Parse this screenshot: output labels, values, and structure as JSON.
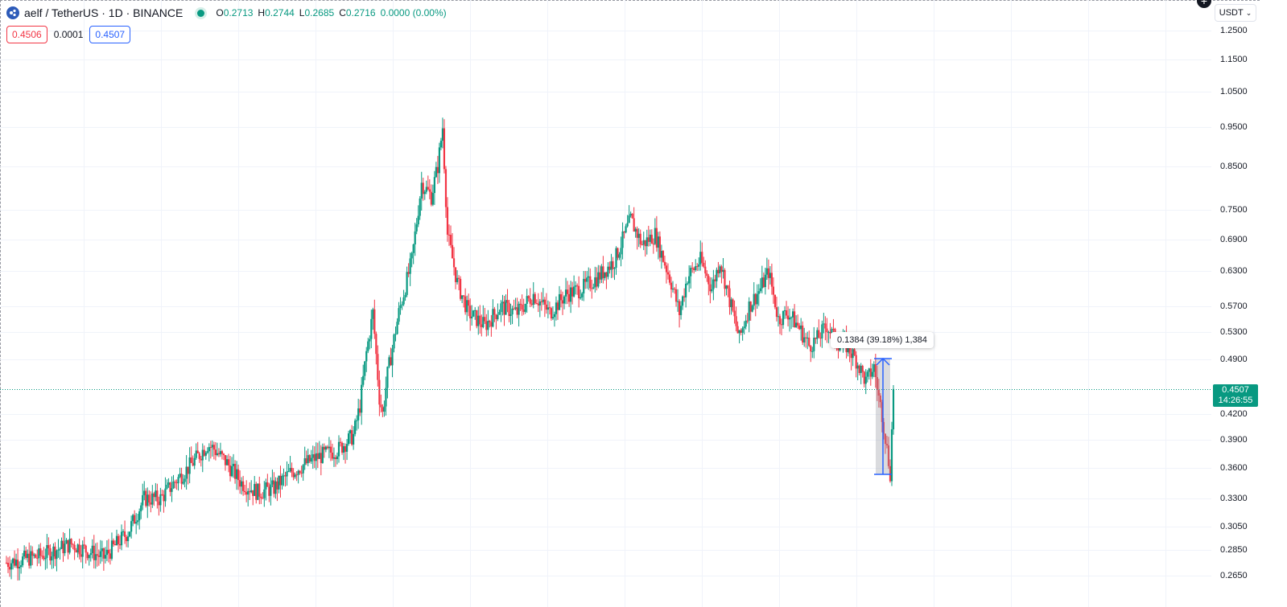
{
  "header": {
    "symbol": "aelf / TetherUS · 1D · BINANCE",
    "open_label": "O",
    "open": "0.2713",
    "high_label": "H",
    "high": "0.2744",
    "low_label": "L",
    "low": "0.2685",
    "close_label": "C",
    "close": "0.2716",
    "change": "0.0000 (0.00%)"
  },
  "trade": {
    "sell": "0.4506",
    "spread": "0.0001",
    "buy": "0.4507"
  },
  "currency": {
    "label": "USDT"
  },
  "price_axis": {
    "labels": [
      "1.2500",
      "1.1500",
      "1.0500",
      "0.9500",
      "0.8500",
      "0.7500",
      "0.6900",
      "0.6300",
      "0.5700",
      "0.5300",
      "0.4900",
      "0.4200",
      "0.3900",
      "0.3600",
      "0.3300",
      "0.3050",
      "0.2850",
      "0.2650"
    ],
    "last_price": "0.4507",
    "countdown": "14:26:55"
  },
  "measure": {
    "label": "0.1384 (39.18%) 1,384"
  },
  "colors": {
    "up": "#089981",
    "down": "#f23645",
    "measure": "#2962ff"
  },
  "chart_data": {
    "type": "candlestick",
    "scale": "log",
    "yticks": [
      1.25,
      1.15,
      1.05,
      0.95,
      0.85,
      0.75,
      0.69,
      0.63,
      0.57,
      0.53,
      0.49,
      0.42,
      0.39,
      0.36,
      0.33,
      0.305,
      0.285,
      0.265
    ],
    "waypoints": [
      [
        0,
        0.275
      ],
      [
        20,
        0.28
      ],
      [
        40,
        0.29
      ],
      [
        60,
        0.279
      ],
      [
        75,
        0.3
      ],
      [
        85,
        0.33
      ],
      [
        95,
        0.33
      ],
      [
        105,
        0.348
      ],
      [
        112,
        0.36
      ],
      [
        118,
        0.372
      ],
      [
        124,
        0.385
      ],
      [
        128,
        0.38
      ],
      [
        136,
        0.365
      ],
      [
        145,
        0.345
      ],
      [
        155,
        0.336
      ],
      [
        165,
        0.34
      ],
      [
        175,
        0.355
      ],
      [
        190,
        0.37
      ],
      [
        205,
        0.38
      ],
      [
        214,
        0.395
      ],
      [
        218,
        0.43
      ],
      [
        222,
        0.5
      ],
      [
        226,
        0.56
      ],
      [
        230,
        0.44
      ],
      [
        232,
        0.42
      ],
      [
        235,
        0.47
      ],
      [
        242,
        0.56
      ],
      [
        250,
        0.65
      ],
      [
        256,
        0.81
      ],
      [
        262,
        0.78
      ],
      [
        266,
        0.85
      ],
      [
        269,
        0.95
      ],
      [
        272,
        0.7
      ],
      [
        278,
        0.61
      ],
      [
        285,
        0.56
      ],
      [
        295,
        0.54
      ],
      [
        305,
        0.57
      ],
      [
        315,
        0.56
      ],
      [
        325,
        0.59
      ],
      [
        335,
        0.56
      ],
      [
        345,
        0.59
      ],
      [
        355,
        0.6
      ],
      [
        365,
        0.62
      ],
      [
        375,
        0.65
      ],
      [
        385,
        0.73
      ],
      [
        392,
        0.68
      ],
      [
        400,
        0.7
      ],
      [
        410,
        0.61
      ],
      [
        415,
        0.56
      ],
      [
        420,
        0.62
      ],
      [
        428,
        0.65
      ],
      [
        435,
        0.6
      ],
      [
        440,
        0.65
      ],
      [
        446,
        0.58
      ],
      [
        452,
        0.52
      ],
      [
        458,
        0.57
      ],
      [
        465,
        0.6
      ],
      [
        470,
        0.63
      ],
      [
        476,
        0.55
      ],
      [
        482,
        0.56
      ],
      [
        488,
        0.54
      ],
      [
        495,
        0.51
      ],
      [
        500,
        0.52
      ],
      [
        506,
        0.54
      ],
      [
        512,
        0.515
      ],
      [
        518,
        0.51
      ],
      [
        524,
        0.49
      ],
      [
        530,
        0.46
      ],
      [
        535,
        0.48
      ],
      [
        538,
        0.44
      ],
      [
        540,
        0.42
      ],
      [
        543,
        0.38
      ],
      [
        545,
        0.355
      ],
      [
        547,
        0.45
      ]
    ],
    "xrange": [
      0,
      547
    ],
    "ylim": [
      0.255,
      1.3
    ]
  }
}
